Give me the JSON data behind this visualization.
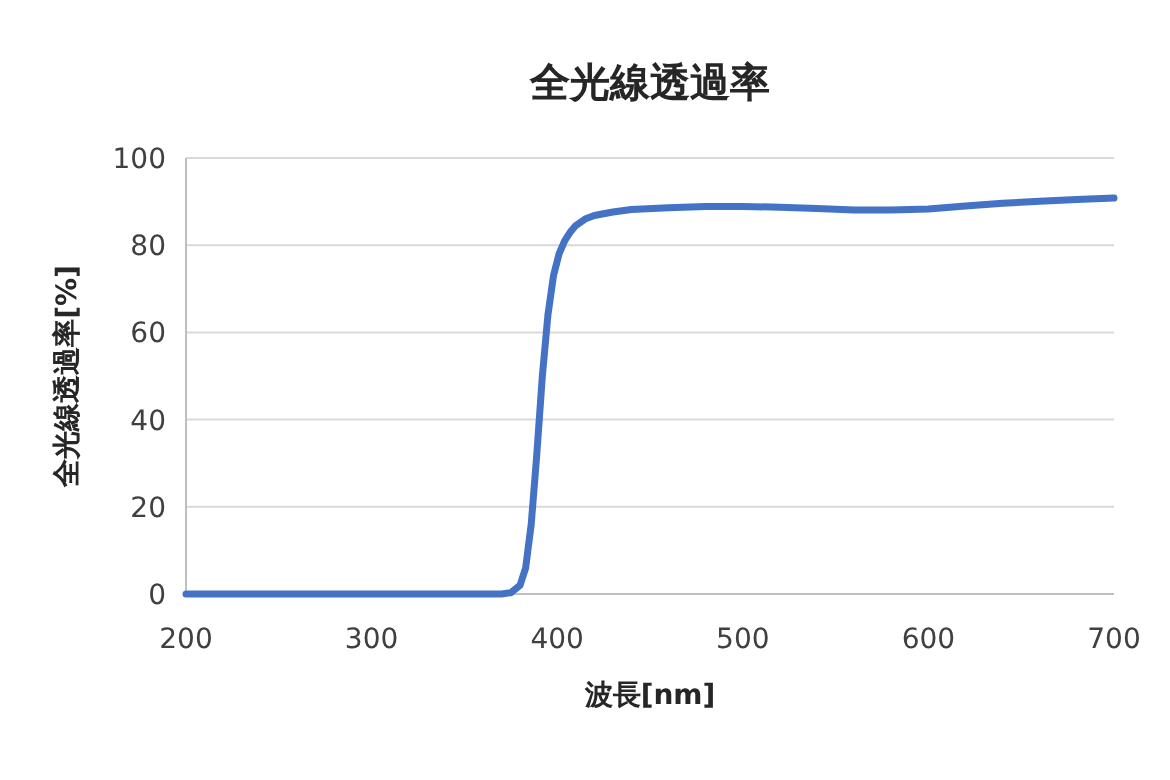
{
  "chart_data": {
    "type": "line",
    "title": "全光線透過率",
    "xlabel": "波長[nm]",
    "ylabel": "全光線透過率[%]",
    "x": [
      200,
      300,
      370,
      375,
      380,
      383,
      386,
      389,
      392,
      395,
      398,
      401,
      404,
      407,
      410,
      415,
      420,
      430,
      440,
      460,
      480,
      500,
      520,
      540,
      560,
      580,
      600,
      620,
      640,
      660,
      680,
      700
    ],
    "series": [
      {
        "color": "#4472c4",
        "values": [
          0,
          0,
          0,
          0.3,
          2,
          6,
          16,
          32,
          50,
          64,
          73,
          78,
          81,
          83,
          84.5,
          86,
          86.8,
          87.6,
          88.2,
          88.6,
          88.9,
          88.9,
          88.7,
          88.4,
          88.1,
          88.1,
          88.3,
          89,
          89.6,
          90.1,
          90.5,
          90.8
        ]
      }
    ],
    "xlim": [
      200,
      700
    ],
    "xticks": [
      200,
      300,
      400,
      500,
      600,
      700
    ],
    "ylim": [
      0,
      100
    ],
    "yticks": [
      0,
      20,
      40,
      60,
      80,
      100
    ],
    "grid": "y",
    "line_style": "solid",
    "marker": "none"
  }
}
